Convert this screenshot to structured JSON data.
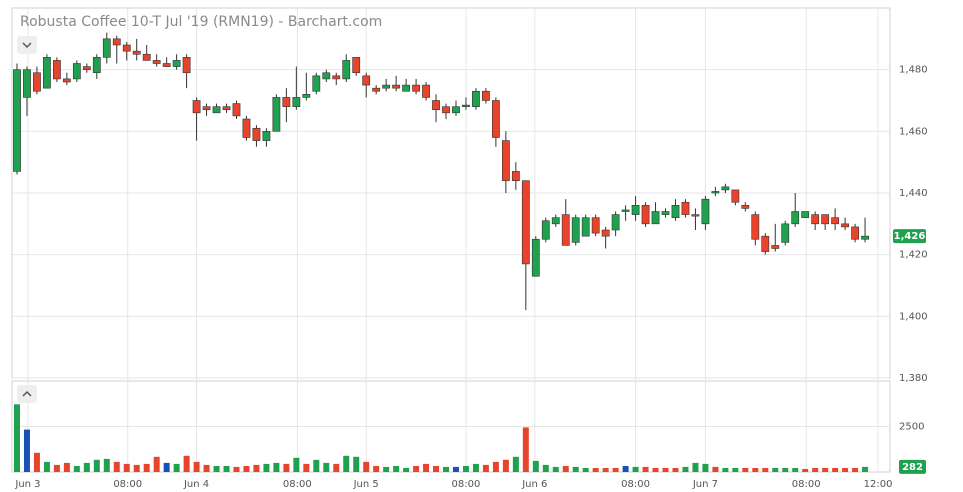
{
  "chart_data": {
    "type": "candlestick",
    "title": "Robusta Coffee 10-T Jul '19 (RMN19) - Barchart.com",
    "xlim": [
      -0.5,
      87.5
    ],
    "xticks": [
      {
        "value": 1.1,
        "label": "Jun 3"
      },
      {
        "value": 11.1,
        "label": "08:00"
      },
      {
        "value": 18.0,
        "label": "Jun 4"
      },
      {
        "value": 28.1,
        "label": "08:00"
      },
      {
        "value": 35.0,
        "label": "Jun 5"
      },
      {
        "value": 45.0,
        "label": "08:00"
      },
      {
        "value": 51.9,
        "label": "Jun 6"
      },
      {
        "value": 62.0,
        "label": "08:00"
      },
      {
        "value": 69.0,
        "label": "Jun 7"
      },
      {
        "value": 79.1,
        "label": "08:00"
      },
      {
        "value": 86.3,
        "label": "12:00"
      }
    ],
    "ylim": [
      1380,
      1500
    ],
    "yticks": [
      {
        "value": 1380,
        "label": "1,380"
      },
      {
        "value": 1400,
        "label": "1,400"
      },
      {
        "value": 1420,
        "label": "1,420"
      },
      {
        "value": 1440,
        "label": "1,440"
      },
      {
        "value": 1460,
        "label": "1,460"
      },
      {
        "value": 1480,
        "label": "1,480"
      }
    ],
    "grid": true,
    "up_color": "#1fa150",
    "down_color": "#e8442b",
    "open": [
      1447,
      1471,
      1479,
      1474,
      1483,
      1477,
      1477,
      1481,
      1479,
      1484,
      1490,
      1488,
      1486,
      1485,
      1483,
      1482,
      1481,
      1484,
      1470,
      1468,
      1466,
      1468,
      1469,
      1464,
      1461,
      1457,
      1460,
      1471,
      1468,
      1471,
      1473,
      1477,
      1478,
      1477,
      1484,
      1478,
      1474,
      1474,
      1475,
      1473,
      1475,
      1475,
      1470,
      1468,
      1466,
      1468,
      1468,
      1473,
      1470,
      1457,
      1447,
      1444,
      1413,
      1425,
      1430,
      1433,
      1424,
      1426,
      1432,
      1428,
      1428,
      1434,
      1433,
      1436,
      1430,
      1433,
      1432,
      1437,
      1433,
      1430,
      1440,
      1441,
      1441,
      1436,
      1433,
      1426,
      1423,
      1424,
      1430,
      1432,
      1433,
      1433,
      1432,
      1430,
      1429,
      1425
    ],
    "high": [
      1482,
      1481,
      1481,
      1485,
      1484,
      1479,
      1483,
      1482,
      1485,
      1492,
      1491,
      1489,
      1490,
      1488,
      1485,
      1484,
      1485,
      1485,
      1471,
      1469,
      1469,
      1469,
      1470,
      1465,
      1462,
      1461,
      1472,
      1474,
      1481,
      1479,
      1479,
      1480,
      1479,
      1485,
      1484,
      1479,
      1475,
      1477,
      1478,
      1477,
      1477,
      1476,
      1472,
      1469,
      1470,
      1471,
      1474,
      1474,
      1471,
      1460,
      1450,
      1444,
      1426,
      1432,
      1433,
      1438,
      1433,
      1433,
      1433,
      1429,
      1434,
      1436,
      1439,
      1437,
      1437,
      1435,
      1438,
      1438,
      1435,
      1439,
      1442,
      1443,
      1441,
      1437,
      1434,
      1427,
      1430,
      1431,
      1440,
      1434,
      1434,
      1433,
      1435,
      1432,
      1430,
      1432
    ],
    "low": [
      1446,
      1465,
      1472,
      1474,
      1476,
      1475,
      1476,
      1479,
      1477,
      1482,
      1482,
      1483,
      1483,
      1483,
      1481,
      1481,
      1480,
      1474,
      1457,
      1465,
      1466,
      1466,
      1464,
      1457,
      1455,
      1455,
      1460,
      1463,
      1467,
      1470,
      1472,
      1476,
      1475,
      1476,
      1478,
      1471,
      1472,
      1473,
      1473,
      1473,
      1472,
      1470,
      1463,
      1464,
      1465,
      1467,
      1467,
      1469,
      1455,
      1440,
      1441,
      1402,
      1413,
      1424,
      1429,
      1423,
      1423,
      1426,
      1426,
      1422,
      1426,
      1431,
      1431,
      1429,
      1430,
      1432,
      1431,
      1432,
      1428,
      1428,
      1439,
      1440,
      1436,
      1434,
      1423,
      1420,
      1421,
      1423,
      1429,
      1432,
      1428,
      1428,
      1428,
      1428,
      1424,
      1424
    ],
    "close": [
      1480,
      1480,
      1473,
      1484,
      1477,
      1476,
      1482,
      1480,
      1484,
      1490,
      1488,
      1486,
      1485,
      1483,
      1482,
      1481,
      1483,
      1479,
      1466,
      1467,
      1468,
      1467,
      1465,
      1458,
      1457,
      1460,
      1471,
      1468,
      1471,
      1472,
      1478,
      1479,
      1477,
      1483,
      1479,
      1475,
      1473,
      1475,
      1474,
      1475,
      1473,
      1471,
      1467,
      1466,
      1468,
      1468.5,
      1473,
      1470,
      1458,
      1444,
      1444,
      1417,
      1425,
      1431,
      1432,
      1423,
      1432,
      1432,
      1427,
      1426,
      1433,
      1434.5,
      1436,
      1430,
      1434,
      1434,
      1436,
      1433,
      1432.5,
      1438,
      1440.5,
      1442,
      1437,
      1435,
      1425,
      1421,
      1422,
      1430,
      1434,
      1434,
      1430,
      1430,
      1430,
      1429,
      1425,
      1426
    ],
    "last_price": {
      "value": 1426,
      "label": "1,426"
    },
    "volume": {
      "ylim": [
        0,
        5000
      ],
      "yticks": [
        2500
      ],
      "values": [
        3720,
        2330,
        1055,
        555,
        390,
        500,
        330,
        500,
        670,
        720,
        555,
        445,
        390,
        445,
        835,
        500,
        445,
        890,
        555,
        390,
        330,
        330,
        280,
        330,
        390,
        445,
        500,
        445,
        780,
        445,
        670,
        500,
        445,
        890,
        835,
        555,
        330,
        280,
        330,
        220,
        330,
        445,
        330,
        280,
        280,
        330,
        445,
        390,
        555,
        670,
        835,
        2450,
        610,
        390,
        280,
        330,
        280,
        220,
        220,
        220,
        220,
        330,
        280,
        280,
        220,
        220,
        220,
        280,
        500,
        445,
        280,
        220,
        220,
        220,
        220,
        220,
        220,
        220,
        220,
        165,
        220,
        220,
        220,
        220,
        220,
        282
      ],
      "colors": [
        "#1fa150",
        "#1d4fb8",
        "#e8442b",
        "#1fa150",
        "#e8442b",
        "#e8442b",
        "#1fa150",
        "#1fa150",
        "#1fa150",
        "#1fa150",
        "#e8442b",
        "#e8442b",
        "#e8442b",
        "#e8442b",
        "#e8442b",
        "#1d4fb8",
        "#1fa150",
        "#e8442b",
        "#e8442b",
        "#e8442b",
        "#1fa150",
        "#1fa150",
        "#e8442b",
        "#e8442b",
        "#e8442b",
        "#1fa150",
        "#1fa150",
        "#e8442b",
        "#1fa150",
        "#e8442b",
        "#1fa150",
        "#1fa150",
        "#e8442b",
        "#1fa150",
        "#1fa150",
        "#e8442b",
        "#e8442b",
        "#1fa150",
        "#1fa150",
        "#1fa150",
        "#e8442b",
        "#e8442b",
        "#e8442b",
        "#1fa150",
        "#1d4fb8",
        "#1fa150",
        "#1fa150",
        "#e8442b",
        "#e8442b",
        "#e8442b",
        "#1fa150",
        "#e8442b",
        "#1fa150",
        "#1fa150",
        "#1fa150",
        "#e8442b",
        "#1fa150",
        "#1fa150",
        "#e8442b",
        "#e8442b",
        "#e8442b",
        "#1d4fb8",
        "#1fa150",
        "#e8442b",
        "#e8442b",
        "#e8442b",
        "#e8442b",
        "#1fa150",
        "#1fa150",
        "#1fa150",
        "#e8442b",
        "#1fa150",
        "#1fa150",
        "#e8442b",
        "#e8442b",
        "#e8442b",
        "#1fa150",
        "#1fa150",
        "#1fa150",
        "#e8442b",
        "#e8442b",
        "#e8442b",
        "#e8442b",
        "#e8442b",
        "#e8442b",
        "#1fa150"
      ]
    }
  }
}
